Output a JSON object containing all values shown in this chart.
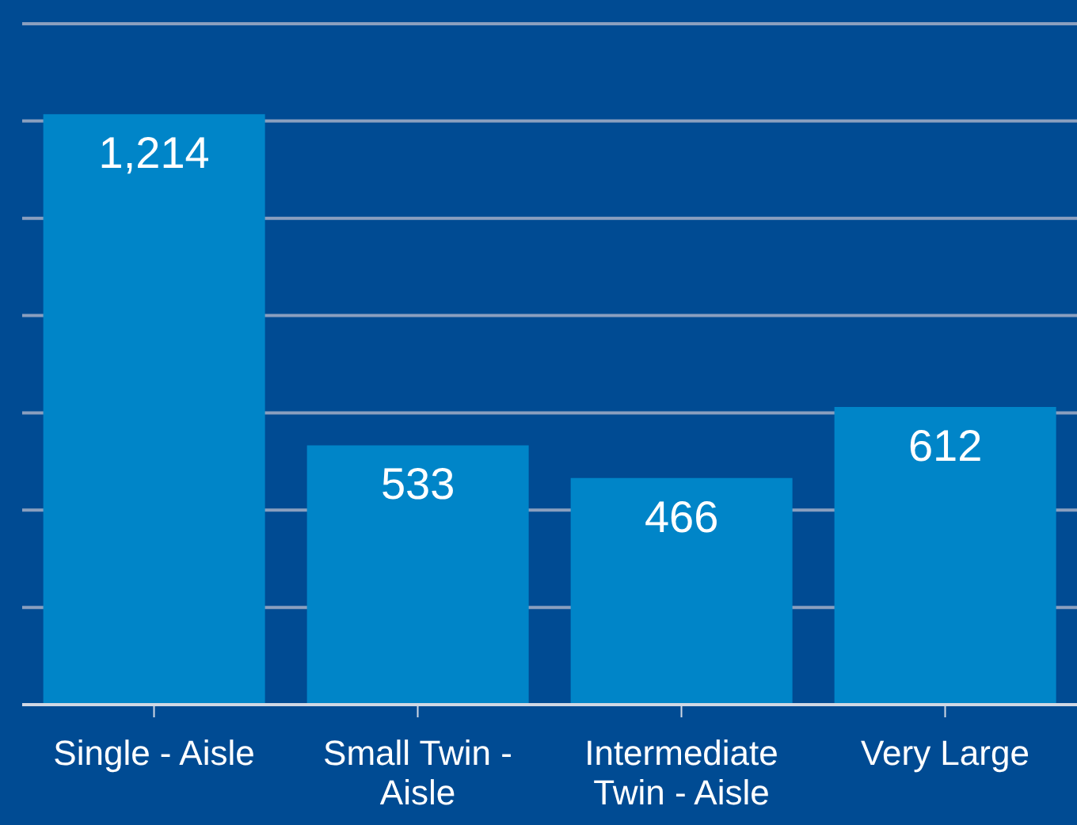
{
  "chart_data": {
    "type": "bar",
    "categories": [
      "Single - Aisle",
      "Small Twin - Aisle",
      "Intermediate Twin - Aisle",
      "Very Large"
    ],
    "values": [
      1214,
      533,
      466,
      612
    ],
    "color": "#0085c8",
    "value_labels": [
      "1,214",
      "533",
      "466",
      "612"
    ],
    "ylim": [
      0,
      1400
    ],
    "yticks": [
      {
        "value": 0,
        "label": null
      },
      {
        "value": 200,
        "label": null
      },
      {
        "value": 400,
        "label": null
      },
      {
        "value": 600,
        "label": null
      },
      {
        "value": 800,
        "label": null
      },
      {
        "value": 1000,
        "label": null
      },
      {
        "value": 1200,
        "label": null
      },
      {
        "value": 1400,
        "label": null
      }
    ],
    "grid": "y",
    "tick_labels": "x",
    "legend": false
  }
}
